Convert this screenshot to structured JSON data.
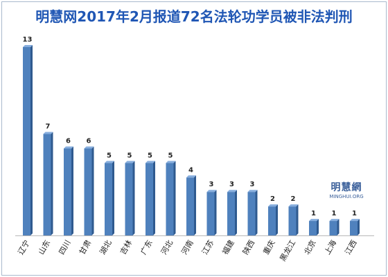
{
  "chart_data": {
    "type": "bar",
    "title": "明慧网2017年2月报道72名法轮功学员被非法判刑",
    "categories": [
      "辽宁",
      "山东",
      "四川",
      "甘肃",
      "湖北",
      "吉林",
      "广东",
      "河北",
      "河南",
      "江苏",
      "福建",
      "陕西",
      "重庆",
      "黑龙江",
      "北京",
      "上海",
      "江西"
    ],
    "values": [
      13,
      7,
      6,
      6,
      5,
      5,
      5,
      5,
      4,
      3,
      3,
      3,
      2,
      2,
      1,
      1,
      1
    ],
    "xlabel": "",
    "ylabel": "",
    "ylim": [
      0,
      13
    ],
    "grid": false,
    "legend": "none",
    "bar_color": "#4f81bd",
    "bar_side_color": "#2f5a8f",
    "bar_top_color": "#87aede",
    "title_color": "#1f56b4"
  },
  "logo": {
    "name": "明慧網",
    "sub": "MINGHUI.ORG"
  }
}
